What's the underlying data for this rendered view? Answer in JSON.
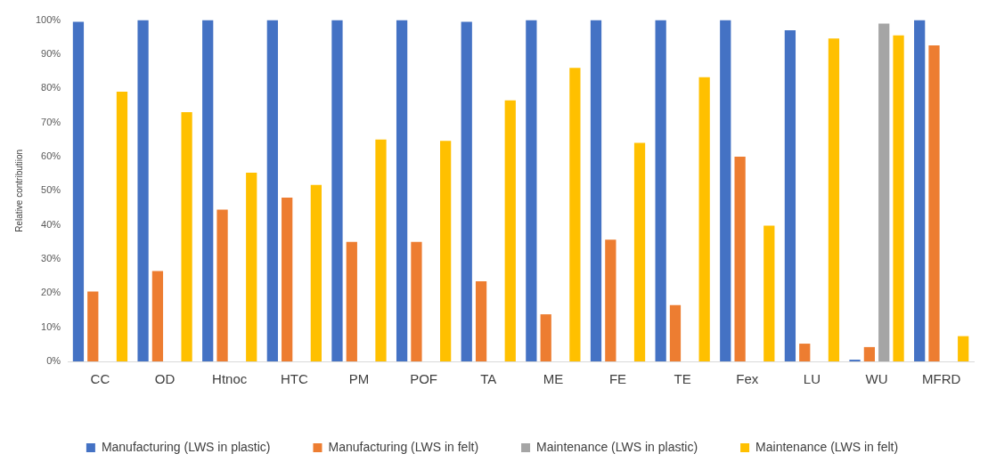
{
  "chart_data": {
    "type": "bar",
    "ylabel": "Relative contributiion",
    "categories": [
      "CC",
      "OD",
      "Htnoc",
      "HTC",
      "PM",
      "POF",
      "TA",
      "ME",
      "FE",
      "TE",
      "Fex",
      "LU",
      "WU",
      "MFRD"
    ],
    "series": [
      {
        "name": "Manufacturing (LWS in plastic)",
        "color": "#4472c4",
        "values": [
          99.5,
          100,
          100,
          100,
          100,
          100,
          99.5,
          100,
          100,
          100,
          100,
          97,
          0.5,
          100
        ]
      },
      {
        "name": "Manufacturing (LWS in felt)",
        "color": "#ed7d31",
        "values": [
          20.5,
          26.5,
          44.5,
          48,
          35,
          35,
          23.5,
          13.8,
          35.7,
          16.5,
          60,
          5.2,
          4.2,
          92.6
        ]
      },
      {
        "name": "Maintenance (LWS in plastic)",
        "color": "#a5a5a5",
        "values": [
          0,
          0,
          0,
          0,
          0,
          0,
          0,
          0,
          0,
          0,
          0,
          0,
          99,
          0
        ]
      },
      {
        "name": "Maintenance (LWS in felt)",
        "color": "#ffc000",
        "values": [
          79,
          73,
          55.3,
          51.7,
          65,
          64.6,
          76.5,
          86,
          64,
          83.3,
          39.8,
          94.6,
          95.5,
          7.4
        ]
      }
    ],
    "ylim": [
      0,
      100
    ],
    "yticks": [
      {
        "value": 0,
        "label": "0%"
      },
      {
        "value": 10,
        "label": "10%"
      },
      {
        "value": 20,
        "label": "20%"
      },
      {
        "value": 30,
        "label": "30%"
      },
      {
        "value": 40,
        "label": "40%"
      },
      {
        "value": 50,
        "label": "50%"
      },
      {
        "value": 60,
        "label": "60%"
      },
      {
        "value": 70,
        "label": "70%"
      },
      {
        "value": 80,
        "label": "80%"
      },
      {
        "value": 90,
        "label": "90%"
      },
      {
        "value": 100,
        "label": "100%"
      }
    ],
    "grid": false,
    "legend": "bottom"
  }
}
